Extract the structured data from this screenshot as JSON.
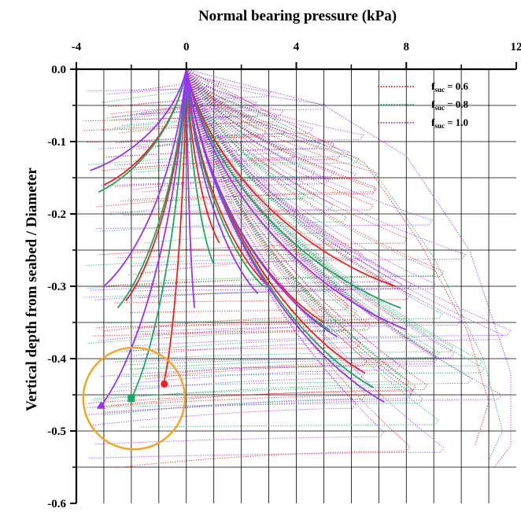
{
  "chart_data": {
    "type": "line",
    "xlabel": "Normal bearing pressure (kPa)",
    "ylabel": "Vertical depth from seabed / Diameter",
    "xlim": [
      -4,
      12
    ],
    "ylim": [
      -0.6,
      0.0
    ],
    "x_ticks": [
      "-4",
      "0",
      "4",
      "8",
      "12"
    ],
    "y_ticks": [
      "0.0",
      "-0.1",
      "-0.2",
      "-0.3",
      "-0.4",
      "-0.5",
      "-0.6"
    ],
    "x_axis_position": "top",
    "grid": true,
    "legend_position": "top-right",
    "legend": [
      {
        "label_main": "f",
        "label_sub": "suc",
        "label_rest": " = 0.6",
        "color": "#ff1a1a"
      },
      {
        "label_main": "f",
        "label_sub": "suc",
        "label_rest": " = 0.8",
        "color": "#1aa860"
      },
      {
        "label_main": "f",
        "label_sub": "suc",
        "label_rest": " = 1.0",
        "color": "#9b30ff"
      }
    ],
    "series": [
      {
        "color": "#ff1a1a",
        "solid_curves": [
          {
            "end": [
              -3.0,
              -0.16
            ]
          },
          {
            "end": [
              -2.2,
              -0.32
            ]
          },
          {
            "end": [
              -0.8,
              -0.43
            ]
          },
          {
            "end": [
              1.2,
              -0.24
            ]
          },
          {
            "end": [
              3.0,
              -0.3
            ]
          },
          {
            "end": [
              5.0,
              -0.35
            ]
          },
          {
            "end": [
              6.5,
              -0.42
            ]
          },
          {
            "end": [
              7.6,
              -0.3
            ]
          }
        ],
        "dotted_envelope": [
          {
            "x": 0.0,
            "y": 0.0
          },
          {
            "x": 3.0,
            "y": -0.06
          },
          {
            "x": 6.5,
            "y": -0.13
          },
          {
            "x": 8.5,
            "y": -0.24
          },
          {
            "x": 10.2,
            "y": -0.36
          },
          {
            "x": 11.0,
            "y": -0.46
          },
          {
            "x": 10.5,
            "y": -0.52
          }
        ],
        "marker": {
          "shape": "circle",
          "x": -0.8,
          "y": -0.435
        }
      },
      {
        "color": "#1aa860",
        "solid_curves": [
          {
            "end": [
              -3.2,
              -0.17
            ]
          },
          {
            "end": [
              -2.5,
              -0.33
            ]
          },
          {
            "end": [
              -2.0,
              -0.455
            ]
          },
          {
            "end": [
              1.0,
              -0.27
            ]
          },
          {
            "end": [
              2.8,
              -0.3
            ]
          },
          {
            "end": [
              5.2,
              -0.36
            ]
          },
          {
            "end": [
              6.8,
              -0.44
            ]
          },
          {
            "end": [
              7.8,
              -0.33
            ]
          }
        ],
        "dotted_envelope": [
          {
            "x": 0.0,
            "y": 0.0
          },
          {
            "x": 3.2,
            "y": -0.07
          },
          {
            "x": 6.8,
            "y": -0.14
          },
          {
            "x": 9.0,
            "y": -0.26
          },
          {
            "x": 10.8,
            "y": -0.4
          },
          {
            "x": 11.5,
            "y": -0.5
          },
          {
            "x": 11.0,
            "y": -0.54
          }
        ],
        "marker": {
          "shape": "square",
          "x": -2.0,
          "y": -0.455
        }
      },
      {
        "color": "#9b30ff",
        "solid_curves": [
          {
            "end": [
              -3.5,
              -0.14
            ]
          },
          {
            "end": [
              -3.0,
              -0.3
            ]
          },
          {
            "end": [
              -3.1,
              -0.465
            ]
          },
          {
            "end": [
              0.3,
              -0.33
            ]
          },
          {
            "end": [
              2.6,
              -0.31
            ]
          },
          {
            "end": [
              5.5,
              -0.37
            ]
          },
          {
            "end": [
              7.2,
              -0.46
            ]
          },
          {
            "end": [
              8.0,
              -0.36
            ]
          }
        ],
        "dotted_envelope": [
          {
            "x": 0.0,
            "y": 0.0
          },
          {
            "x": 5.0,
            "y": -0.05
          },
          {
            "x": 8.0,
            "y": -0.12
          },
          {
            "x": 10.3,
            "y": -0.25
          },
          {
            "x": 11.8,
            "y": -0.42
          },
          {
            "x": 11.8,
            "y": -0.52
          },
          {
            "x": 11.2,
            "y": -0.55
          }
        ],
        "marker": {
          "shape": "triangle",
          "x": -3.1,
          "y": -0.465
        }
      }
    ],
    "annotations": [
      {
        "type": "circle",
        "color": "#f5a623",
        "center": [
          -1.9,
          -0.455
        ],
        "radius_x_units": 1.85
      }
    ]
  }
}
